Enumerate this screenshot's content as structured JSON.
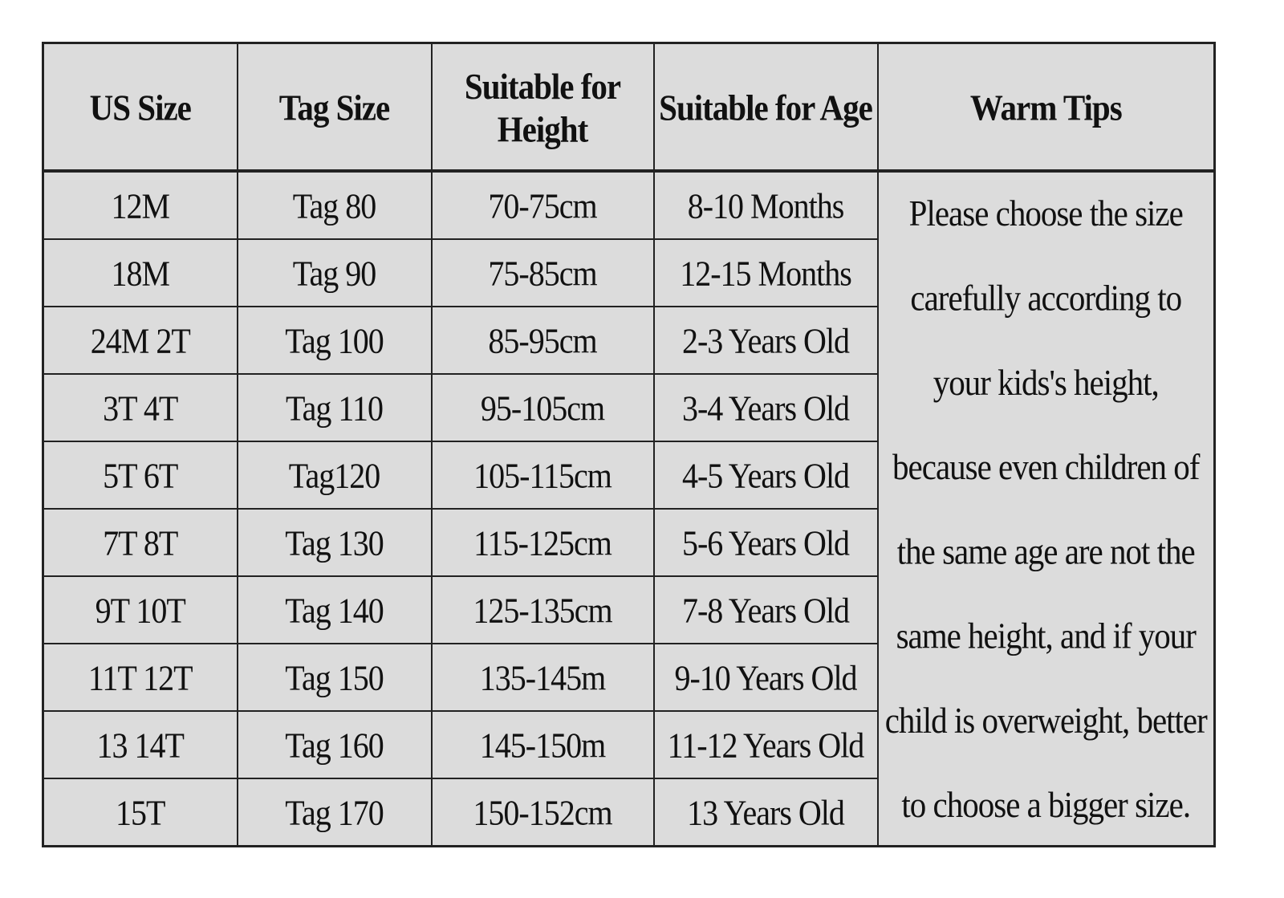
{
  "table": {
    "headers": [
      "US Size",
      "Tag Size",
      "Suitable for Height",
      "Suitable for Age",
      "Warm Tips"
    ],
    "rows": [
      [
        "12M",
        "Tag 80",
        "70-75cm",
        "8-10 Months"
      ],
      [
        "18M",
        "Tag 90",
        "75-85cm",
        "12-15 Months"
      ],
      [
        "24M 2T",
        "Tag 100",
        "85-95cm",
        "2-3 Years Old"
      ],
      [
        "3T 4T",
        "Tag 110",
        "95-105cm",
        "3-4 Years Old"
      ],
      [
        "5T 6T",
        "Tag120",
        "105-115cm",
        "4-5 Years Old"
      ],
      [
        "7T 8T",
        "Tag 130",
        "115-125cm",
        "5-6 Years Old"
      ],
      [
        "9T 10T",
        "Tag 140",
        "125-135cm",
        "7-8 Years Old"
      ],
      [
        "11T 12T",
        "Tag 150",
        "135-145m",
        "9-10 Years Old"
      ],
      [
        "13 14T",
        "Tag 160",
        "145-150m",
        "11-12 Years Old"
      ],
      [
        "15T",
        "Tag 170",
        "150-152cm",
        "13 Years Old"
      ]
    ],
    "warm_tips": "Please choose the size carefully according to your kids's height, because even children of the same age are not the same height, and if your child is overweight, better to choose a bigger size."
  }
}
